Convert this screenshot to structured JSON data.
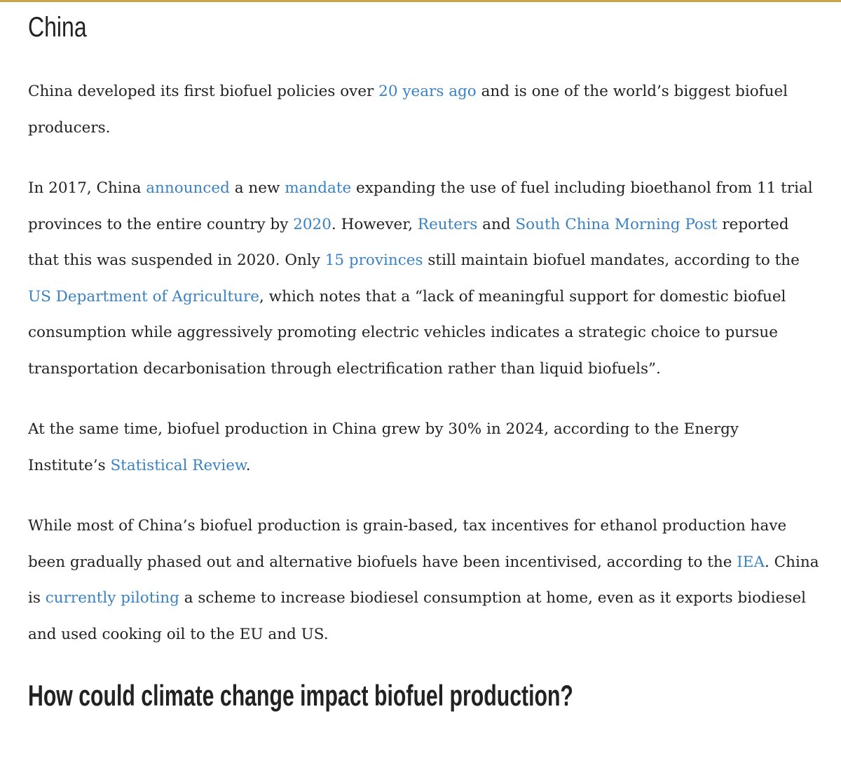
{
  "section_title": "China",
  "paragraphs": [
    {
      "runs": [
        "China developed its first biofuel policies over ",
        {
          "link": "20 years ago"
        },
        " and is one of the world’s biggest biofuel producers."
      ]
    },
    {
      "runs": [
        "In 2017, China ",
        {
          "link": "announced"
        },
        " a new ",
        {
          "link": "mandate"
        },
        " expanding the use of fuel including bioethanol from 11 trial provinces to the entire country by ",
        {
          "link": "2020"
        },
        ". However, ",
        {
          "link": "Reuters"
        },
        " and ",
        {
          "link": "South China Morning Post"
        },
        " reported that this was suspended in 2020. Only ",
        {
          "link": "15 provinces"
        },
        " still maintain biofuel mandates, according to the ",
        {
          "link": "US Department of Agriculture"
        },
        ", which notes that a “lack of meaningful support for domestic biofuel consumption while aggressively promoting electric vehicles indicates a strategic choice to pursue transportation decarbonisation through electrification rather than liquid biofuels”."
      ]
    },
    {
      "runs": [
        "At the same time, biofuel production in China grew by 30% in 2024, according to the Energy Institute’s ",
        {
          "link": "Statistical Review"
        },
        "."
      ]
    },
    {
      "runs": [
        "While most of China’s biofuel production is grain-based, tax incentives for ethanol production have been gradually phased out and alternative biofuels have been incentivised, according to the ",
        {
          "link": "IEA"
        },
        ". China is ",
        {
          "link": "currently piloting"
        },
        " a scheme to increase biodiesel consumption at home, even as it exports biodiesel and used cooking oil to the EU and US."
      ]
    }
  ],
  "next_heading": "How could climate change impact biofuel production?"
}
